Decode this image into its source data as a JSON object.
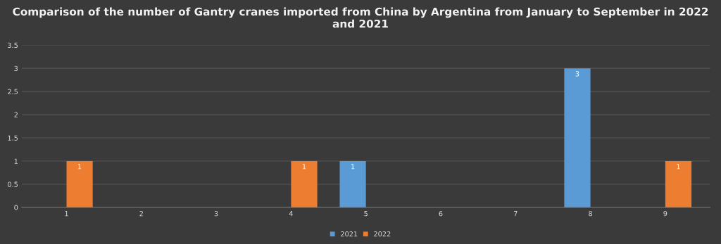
{
  "chart_data": {
    "type": "bar",
    "title": "Comparison of the number of Gantry cranes imported from China by Argentina from January to September in 2022 and 2021",
    "categories": [
      "1",
      "2",
      "3",
      "4",
      "5",
      "6",
      "7",
      "8",
      "9"
    ],
    "series": [
      {
        "name": "2021",
        "color": "#5b9bd5",
        "values": [
          null,
          null,
          null,
          null,
          1,
          null,
          null,
          3,
          null
        ]
      },
      {
        "name": "2022",
        "color": "#ed7d31",
        "values": [
          1,
          null,
          null,
          1,
          null,
          null,
          null,
          null,
          1
        ]
      }
    ],
    "ylim": [
      0,
      3.5
    ],
    "yticks": [
      0,
      0.5,
      1,
      1.5,
      2,
      2.5,
      3,
      3.5
    ],
    "grid": "y",
    "legend": "bottom",
    "data_labels": true
  }
}
